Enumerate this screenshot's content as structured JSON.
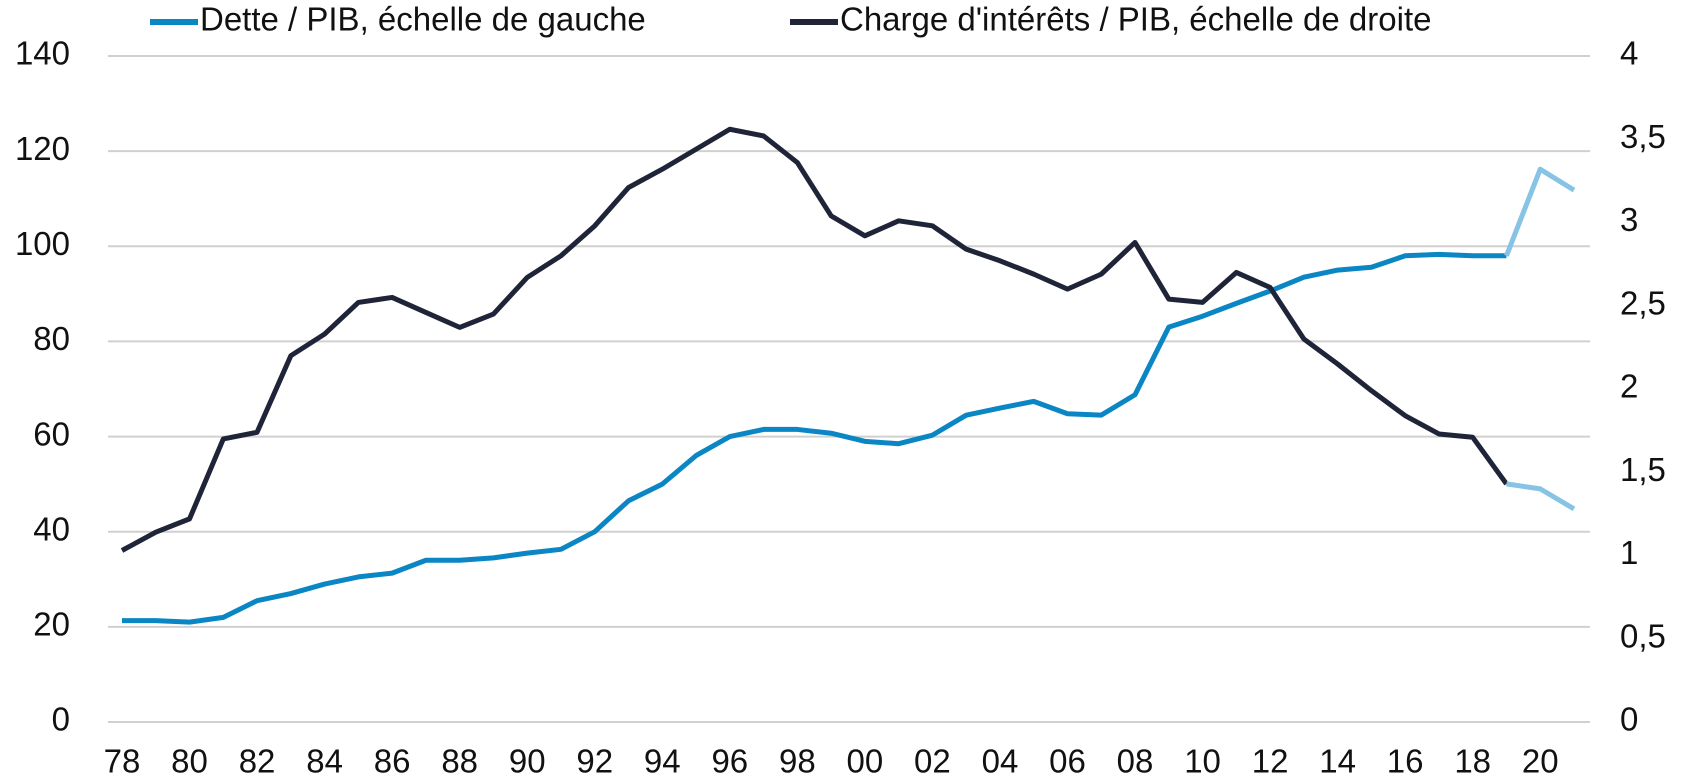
{
  "chart_data": {
    "type": "line",
    "categories": [
      "78",
      null,
      "80",
      null,
      "82",
      null,
      "84",
      null,
      "86",
      null,
      "88",
      null,
      "90",
      null,
      "92",
      null,
      "94",
      null,
      "96",
      null,
      "98",
      null,
      "00",
      null,
      "02",
      null,
      "04",
      null,
      "06",
      null,
      "08",
      null,
      "10",
      null,
      "12",
      null,
      "14",
      null,
      "16",
      null,
      "18",
      null,
      "20",
      null
    ],
    "series": [
      {
        "name": "Dette / PIB, échelle de gauche",
        "color": "#0a86c4",
        "projection_color": "#86c3e4",
        "axis": "y",
        "values": [
          21.3,
          21.3,
          21,
          22,
          25.5,
          27,
          29,
          30.5,
          31.3,
          34,
          34,
          34.5,
          35.5,
          36.3,
          40,
          46.5,
          50,
          56,
          60,
          61.5,
          61.5,
          60.7,
          59,
          58.5,
          60.3,
          64.5,
          66,
          67.4,
          64.8,
          64.5,
          68.8,
          83,
          85.3,
          88,
          90.6,
          93.5,
          95,
          95.6,
          98,
          98.3,
          98,
          98,
          116.2,
          111.8
        ]
      },
      {
        "name": "Charge d'intérêts / PIB, échelle de droite",
        "color": "#1f2438",
        "projection_color": "#86c3e4",
        "axis": "y2",
        "values": [
          1.03,
          1.14,
          1.22,
          1.7,
          1.74,
          2.2,
          2.33,
          2.52,
          2.55,
          2.46,
          2.37,
          2.45,
          2.67,
          2.8,
          2.98,
          3.21,
          3.32,
          3.44,
          3.56,
          3.52,
          3.36,
          3.04,
          2.92,
          3.01,
          2.98,
          2.84,
          2.77,
          2.69,
          2.6,
          2.69,
          2.88,
          2.54,
          2.52,
          2.7,
          2.61,
          2.3,
          2.15,
          1.99,
          1.84,
          1.73,
          1.71,
          1.43,
          1.4,
          1.28
        ]
      }
    ],
    "projection_start": 41,
    "ylim": [
      0,
      140
    ],
    "yticks": [
      0,
      20,
      40,
      60,
      80,
      100,
      120,
      140
    ],
    "y2lim": [
      0,
      4
    ],
    "y2ticks": [
      0,
      {
        "value": 0.5,
        "label": "0,5"
      },
      1,
      {
        "value": 1.5,
        "label": "1,5"
      },
      2,
      {
        "value": 2.5,
        "label": "2,5"
      },
      3,
      {
        "value": 3.5,
        "label": "3,5"
      },
      4
    ],
    "grid": true,
    "legend": "top"
  }
}
